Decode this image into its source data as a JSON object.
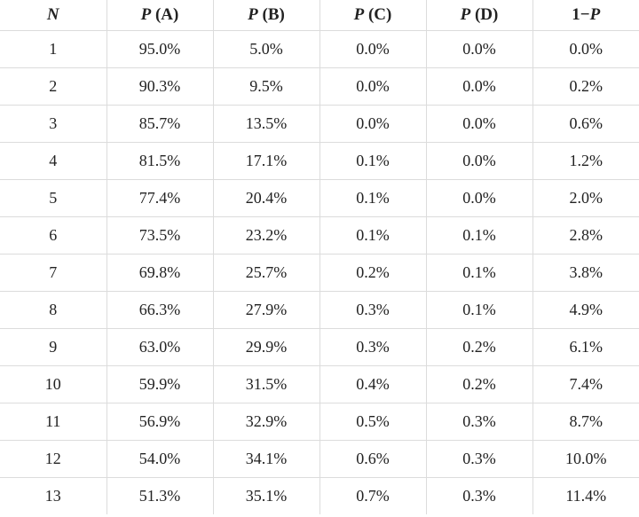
{
  "table": {
    "headers": [
      {
        "var": "N",
        "suffix": ""
      },
      {
        "var": "P",
        "suffix": " (A)"
      },
      {
        "var": "P",
        "suffix": " (B)"
      },
      {
        "var": "P",
        "suffix": " (C)"
      },
      {
        "var": "P",
        "suffix": " (D)"
      },
      {
        "prefix": "1−",
        "var": "P"
      }
    ],
    "rows": [
      [
        "1",
        "95.0%",
        "5.0%",
        "0.0%",
        "0.0%",
        "0.0%"
      ],
      [
        "2",
        "90.3%",
        "9.5%",
        "0.0%",
        "0.0%",
        "0.2%"
      ],
      [
        "3",
        "85.7%",
        "13.5%",
        "0.0%",
        "0.0%",
        "0.6%"
      ],
      [
        "4",
        "81.5%",
        "17.1%",
        "0.1%",
        "0.0%",
        "1.2%"
      ],
      [
        "5",
        "77.4%",
        "20.4%",
        "0.1%",
        "0.0%",
        "2.0%"
      ],
      [
        "6",
        "73.5%",
        "23.2%",
        "0.1%",
        "0.1%",
        "2.8%"
      ],
      [
        "7",
        "69.8%",
        "25.7%",
        "0.2%",
        "0.1%",
        "3.8%"
      ],
      [
        "8",
        "66.3%",
        "27.9%",
        "0.3%",
        "0.1%",
        "4.9%"
      ],
      [
        "9",
        "63.0%",
        "29.9%",
        "0.3%",
        "0.2%",
        "6.1%"
      ],
      [
        "10",
        "59.9%",
        "31.5%",
        "0.4%",
        "0.2%",
        "7.4%"
      ],
      [
        "11",
        "56.9%",
        "32.9%",
        "0.5%",
        "0.3%",
        "8.7%"
      ],
      [
        "12",
        "54.0%",
        "34.1%",
        "0.6%",
        "0.3%",
        "10.0%"
      ],
      [
        "13",
        "51.3%",
        "35.1%",
        "0.7%",
        "0.3%",
        "11.4%"
      ]
    ]
  }
}
